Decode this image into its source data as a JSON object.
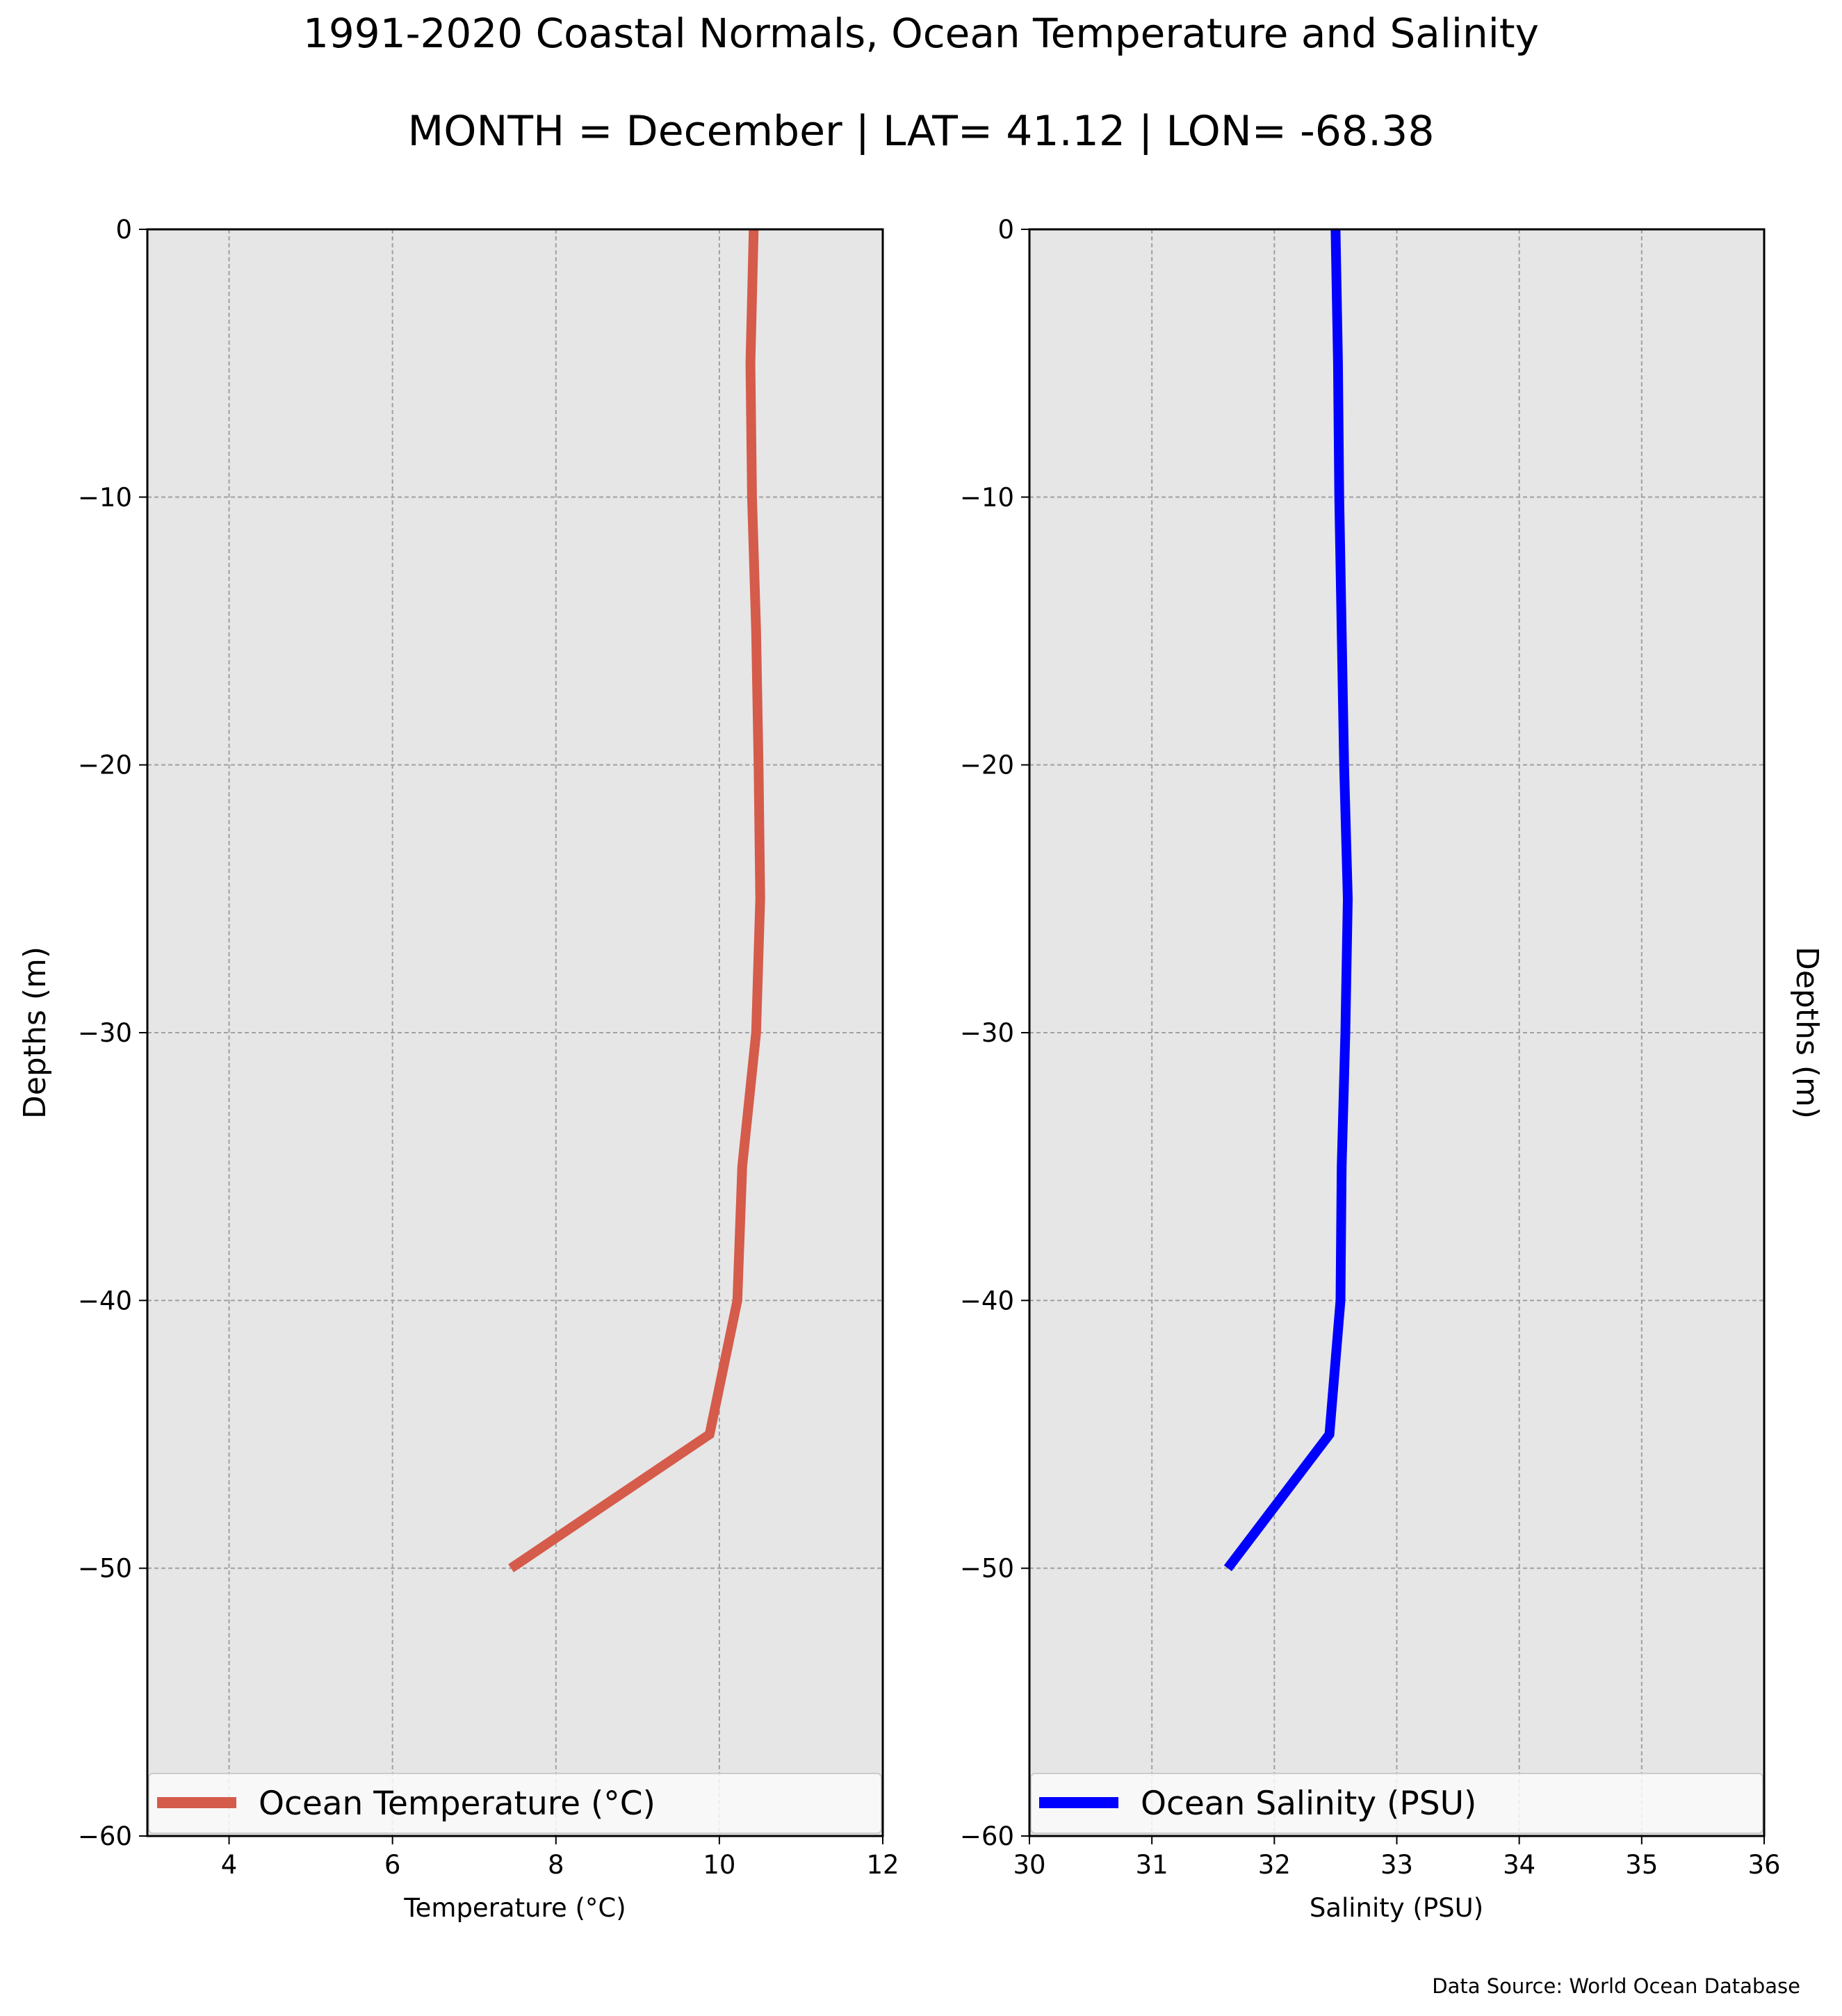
{
  "title": "1991-2020 Coastal Normals, Ocean Temperature and Salinity",
  "subtitle": "MONTH = December | LAT= 41.12 | LON= -68.38",
  "source": "Data Source: World Ocean Database",
  "chart_data": [
    {
      "type": "line",
      "xlabel": "Temperature (°C)",
      "ylabel": "Depths (m)",
      "xlim": [
        3,
        12
      ],
      "ylim": [
        -60,
        0
      ],
      "xticks": [
        "4",
        "6",
        "8",
        "10",
        "12"
      ],
      "yticks": [
        "0",
        "−10",
        "−20",
        "−30",
        "−40",
        "−50",
        "−60"
      ],
      "grid": true,
      "legend": "bottom",
      "series": [
        {
          "name": "Ocean Temperature (°C)",
          "color": "#d55b4b",
          "x": [
            10.42,
            10.38,
            10.4,
            10.45,
            10.48,
            10.5,
            10.45,
            10.28,
            10.22,
            9.88,
            7.45
          ],
          "y": [
            0,
            -5,
            -10,
            -15,
            -20,
            -25,
            -30,
            -35,
            -40,
            -45,
            -50
          ]
        }
      ]
    },
    {
      "type": "line",
      "xlabel": "Salinity (PSU)",
      "ylabel": "Depths (m)",
      "xlim": [
        30,
        36
      ],
      "ylim": [
        -60,
        0
      ],
      "xticks": [
        "30",
        "31",
        "32",
        "33",
        "34",
        "35",
        "36"
      ],
      "yticks": [
        "0",
        "−10",
        "−20",
        "−30",
        "−40",
        "−50",
        "−60"
      ],
      "grid": true,
      "legend": "bottom",
      "series": [
        {
          "name": "Ocean Salinity (PSU)",
          "color": "#0000ff",
          "x": [
            32.5,
            32.52,
            32.53,
            32.55,
            32.57,
            32.6,
            32.58,
            32.55,
            32.54,
            32.45,
            31.62
          ],
          "y": [
            0,
            -5,
            -10,
            -15,
            -20,
            -25,
            -30,
            -35,
            -40,
            -45,
            -50
          ]
        }
      ]
    }
  ]
}
